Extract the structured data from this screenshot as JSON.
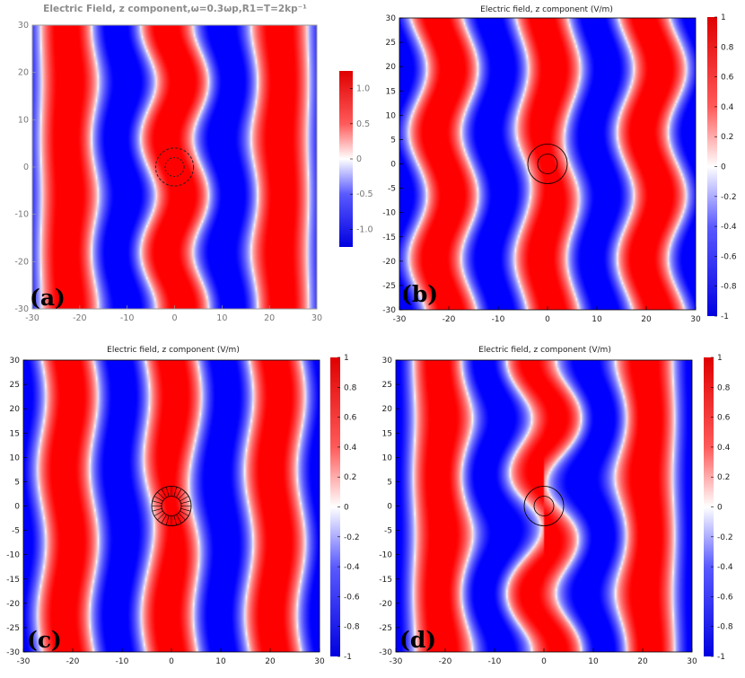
{
  "colors": {
    "positive": "#ff0000",
    "zero": "#ffffff",
    "negative": "#0000ff"
  },
  "chart_data": [
    {
      "id": "a",
      "type": "heatmap",
      "panel_label": "(a)",
      "title": "Electric Field, z component,ω=0.3ωp,R1=T=2kp⁻¹",
      "xlim": [
        -30,
        30
      ],
      "ylim": [
        -30,
        30
      ],
      "x_ticks": [
        "-30",
        "-20",
        "-10",
        "0",
        "10",
        "20",
        "30"
      ],
      "y_ticks": [
        "30",
        "20",
        "10",
        "0",
        "-10",
        "-20",
        "-30"
      ],
      "colorbar": {
        "range": [
          -1.25,
          1.25
        ],
        "ticks": [
          "1.0",
          "0.5",
          "0",
          "-0.5",
          "-1.0"
        ]
      },
      "wavelength": 22.5,
      "deformation": "pinch",
      "cloak": {
        "center": [
          0,
          0
        ],
        "inner_radius": 2,
        "outer_radius": 4,
        "style": "dashed"
      }
    },
    {
      "id": "b",
      "type": "heatmap",
      "panel_label": "(b)",
      "title": "Electric field, z component (V/m)",
      "xlim": [
        -30,
        30
      ],
      "ylim": [
        -30,
        30
      ],
      "x_ticks": [
        "-30",
        "-20",
        "-10",
        "0",
        "10",
        "20",
        "30"
      ],
      "y_ticks": [
        "30",
        "25",
        "20",
        "15",
        "10",
        "5",
        "0",
        "-5",
        "-10",
        "-15",
        "-20",
        "-25",
        "-30"
      ],
      "colorbar": {
        "range": [
          -1,
          1
        ],
        "ticks": [
          "1",
          "0.8",
          "0.6",
          "0.4",
          "0.2",
          "0",
          "-0.2",
          "-0.4",
          "-0.6",
          "-0.8",
          "-1"
        ]
      },
      "wavelength": 21,
      "deformation": "wavy",
      "cloak": {
        "center": [
          0,
          0
        ],
        "inner_radius": 2,
        "outer_radius": 4,
        "style": "solid"
      }
    },
    {
      "id": "c",
      "type": "heatmap",
      "panel_label": "(c)",
      "title": "Electric field, z component (V/m)",
      "xlim": [
        -30,
        30
      ],
      "ylim": [
        -30,
        30
      ],
      "x_ticks": [
        "-30",
        "-20",
        "-10",
        "0",
        "10",
        "20",
        "30"
      ],
      "y_ticks": [
        "30",
        "25",
        "20",
        "15",
        "10",
        "5",
        "0",
        "-5",
        "-10",
        "-15",
        "-20",
        "-25",
        "-30"
      ],
      "colorbar": {
        "range": [
          -1,
          1
        ],
        "ticks": [
          "1",
          "0.8",
          "0.6",
          "0.4",
          "0.2",
          "0",
          "-0.2",
          "-0.4",
          "-0.6",
          "-0.8",
          "-1"
        ]
      },
      "wavelength": 21,
      "deformation": "bulge",
      "cloak": {
        "center": [
          0,
          0
        ],
        "inner_radius": 2,
        "outer_radius": 4,
        "style": "layered"
      }
    },
    {
      "id": "d",
      "type": "heatmap",
      "panel_label": "(d)",
      "title": "Electric field, z component (V/m)",
      "xlim": [
        -30,
        30
      ],
      "ylim": [
        -30,
        30
      ],
      "x_ticks": [
        "-30",
        "-20",
        "-10",
        "0",
        "10",
        "20",
        "30"
      ],
      "y_ticks": [
        "30",
        "25",
        "20",
        "15",
        "10",
        "5",
        "0",
        "-5",
        "-10",
        "-15",
        "-20",
        "-25",
        "-30"
      ],
      "colorbar": {
        "range": [
          -1,
          1
        ],
        "ticks": [
          "1",
          "0.8",
          "0.6",
          "0.4",
          "0.2",
          "0",
          "-0.2",
          "-0.4",
          "-0.6",
          "-0.8",
          "-1"
        ]
      },
      "wavelength": 21,
      "deformation": "scatter",
      "cloak": {
        "center": [
          0,
          0
        ],
        "inner_radius": 2,
        "outer_radius": 4,
        "style": "solid"
      }
    }
  ]
}
